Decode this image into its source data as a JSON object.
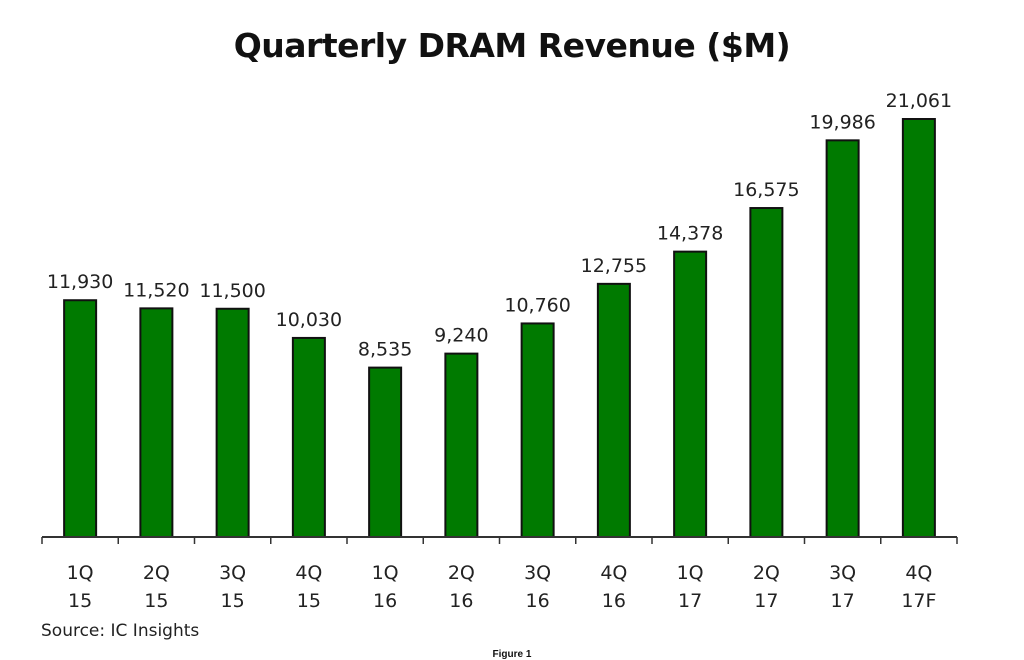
{
  "chart_data": {
    "type": "bar",
    "title": "Quarterly DRAM Revenue ($M)",
    "categories": [
      [
        "1Q",
        "15"
      ],
      [
        "2Q",
        "15"
      ],
      [
        "3Q",
        "15"
      ],
      [
        "4Q",
        "15"
      ],
      [
        "1Q",
        "16"
      ],
      [
        "2Q",
        "16"
      ],
      [
        "3Q",
        "16"
      ],
      [
        "4Q",
        "16"
      ],
      [
        "1Q",
        "17"
      ],
      [
        "2Q",
        "17"
      ],
      [
        "3Q",
        "17"
      ],
      [
        "4Q",
        "17F"
      ]
    ],
    "values": [
      11930,
      11520,
      11500,
      10030,
      8535,
      9240,
      10760,
      12755,
      14378,
      16575,
      19986,
      21061
    ],
    "value_labels": [
      "11,930",
      "11,520",
      "11,500",
      "10,030",
      "8,535",
      "9,240",
      "10,760",
      "12,755",
      "14,378",
      "16,575",
      "19,986",
      "21,061"
    ],
    "xlabel": "",
    "ylabel": "",
    "ylim": [
      0,
      21061
    ],
    "grid": false,
    "legend": "none",
    "bar_color": "#007a00",
    "bar_edge_color": "#111111"
  },
  "source": "Source:  IC Insights",
  "figure_caption": "Figure 1"
}
